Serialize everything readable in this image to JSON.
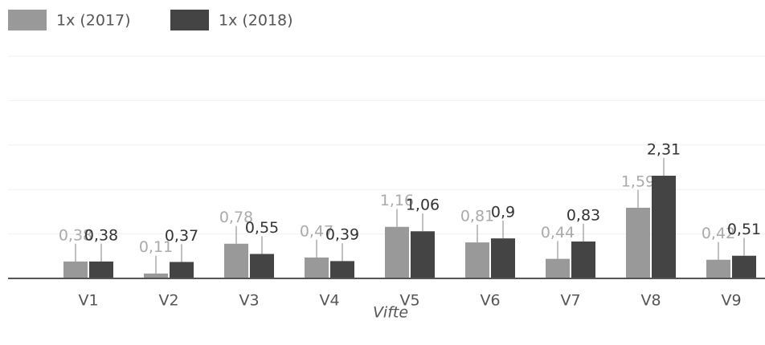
{
  "chart_data": {
    "type": "bar",
    "categories": [
      "V1",
      "V2",
      "V3",
      "V4",
      "V5",
      "V6",
      "V7",
      "V8",
      "V9"
    ],
    "x_label": "Vifte",
    "ylim": [
      0,
      5
    ],
    "yticks": [
      0,
      1,
      2,
      3,
      4,
      5
    ],
    "grid": true,
    "legend": "top-left",
    "series": [
      {
        "name": "1x (2017)",
        "color": "#999999",
        "label_color": "#aaaaaa",
        "values": [
          0.38,
          0.11,
          0.78,
          0.47,
          1.16,
          0.81,
          0.44,
          1.59,
          0.42
        ],
        "value_labels": [
          "0,38",
          "0,11",
          "0,78",
          "0,47",
          "1,16",
          "0,81",
          "0,44",
          "1,59",
          "0,42"
        ],
        "errors": [
          0.4,
          0.4,
          0.4,
          0.4,
          0.4,
          0.4,
          0.4,
          0.4,
          0.4
        ]
      },
      {
        "name": "1x (2018)",
        "color": "#444444",
        "label_color": "#333333",
        "values": [
          0.38,
          0.37,
          0.55,
          0.39,
          1.06,
          0.9,
          0.83,
          2.31,
          0.51
        ],
        "value_labels": [
          "0,38",
          "0,37",
          "0,55",
          "0,39",
          "1,06",
          "0,9",
          "0,83",
          "2,31",
          "0,51"
        ],
        "errors": [
          0.4,
          0.4,
          0.4,
          0.4,
          0.4,
          0.4,
          0.4,
          0.4,
          0.4
        ]
      }
    ]
  }
}
